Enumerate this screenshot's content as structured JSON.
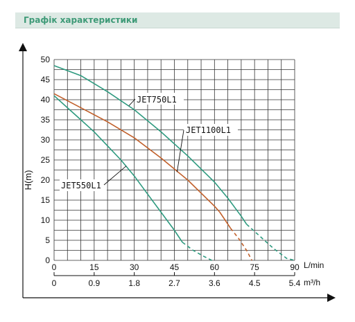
{
  "header": {
    "title": "Графік характеристики"
  },
  "chart_data": {
    "type": "line",
    "title": "",
    "ylabel": "H(m)",
    "xlabel": "L/min",
    "ylim": [
      0,
      50
    ],
    "xlim": [
      0,
      90
    ],
    "y_ticks": [
      "0",
      "5",
      "10",
      "15",
      "20",
      "25",
      "30",
      "35",
      "40",
      "45",
      "50"
    ],
    "x_ticks": [
      "0",
      "15",
      "30",
      "45",
      "60",
      "75",
      "90"
    ],
    "x_unit": "L/min",
    "x2_ticks": [
      "0",
      "0.9",
      "1.8",
      "2.7",
      "3.6",
      "4.5",
      "5.4"
    ],
    "x2_unit": "m³/h",
    "grid": true,
    "series": [
      {
        "name": "JET550L1",
        "color": "#2e9a7f",
        "points": [
          [
            0,
            41
          ],
          [
            5,
            38
          ],
          [
            10,
            35
          ],
          [
            15,
            32
          ],
          [
            20,
            28.5
          ],
          [
            25,
            25
          ],
          [
            30,
            21
          ],
          [
            35,
            16.5
          ],
          [
            40,
            12
          ],
          [
            45,
            7.5
          ],
          [
            48,
            4.5
          ]
        ],
        "dashed_points": [
          [
            48,
            4.5
          ],
          [
            52,
            2.5
          ],
          [
            56,
            1
          ],
          [
            59,
            0
          ]
        ]
      },
      {
        "name": "JET1100L1",
        "color": "#c1602b",
        "points": [
          [
            0,
            41.5
          ],
          [
            10,
            38
          ],
          [
            20,
            34.5
          ],
          [
            30,
            30.5
          ],
          [
            40,
            25.5
          ],
          [
            50,
            20
          ],
          [
            60,
            13.5
          ],
          [
            62,
            12
          ],
          [
            64,
            10
          ],
          [
            66,
            8
          ]
        ],
        "dashed_points": [
          [
            66,
            8
          ],
          [
            69,
            5.5
          ],
          [
            72,
            2.5
          ],
          [
            74,
            0
          ]
        ]
      },
      {
        "name": "JET750L1",
        "color": "#2e9a7f",
        "points": [
          [
            0,
            48.5
          ],
          [
            10,
            46
          ],
          [
            20,
            42
          ],
          [
            30,
            37.5
          ],
          [
            40,
            32
          ],
          [
            50,
            26
          ],
          [
            60,
            19.5
          ],
          [
            65,
            15.5
          ],
          [
            70,
            11
          ],
          [
            72,
            9
          ]
        ],
        "dashed_points": [
          [
            72,
            9
          ],
          [
            77,
            6
          ],
          [
            82,
            3
          ],
          [
            87,
            0.5
          ],
          [
            90,
            0
          ]
        ]
      }
    ],
    "annotations": [
      {
        "text": "JET750L1",
        "series": "JET750L1"
      },
      {
        "text": "JET1100L1",
        "series": "JET1100L1"
      },
      {
        "text": "JET550L1",
        "series": "JET550L1"
      }
    ]
  }
}
